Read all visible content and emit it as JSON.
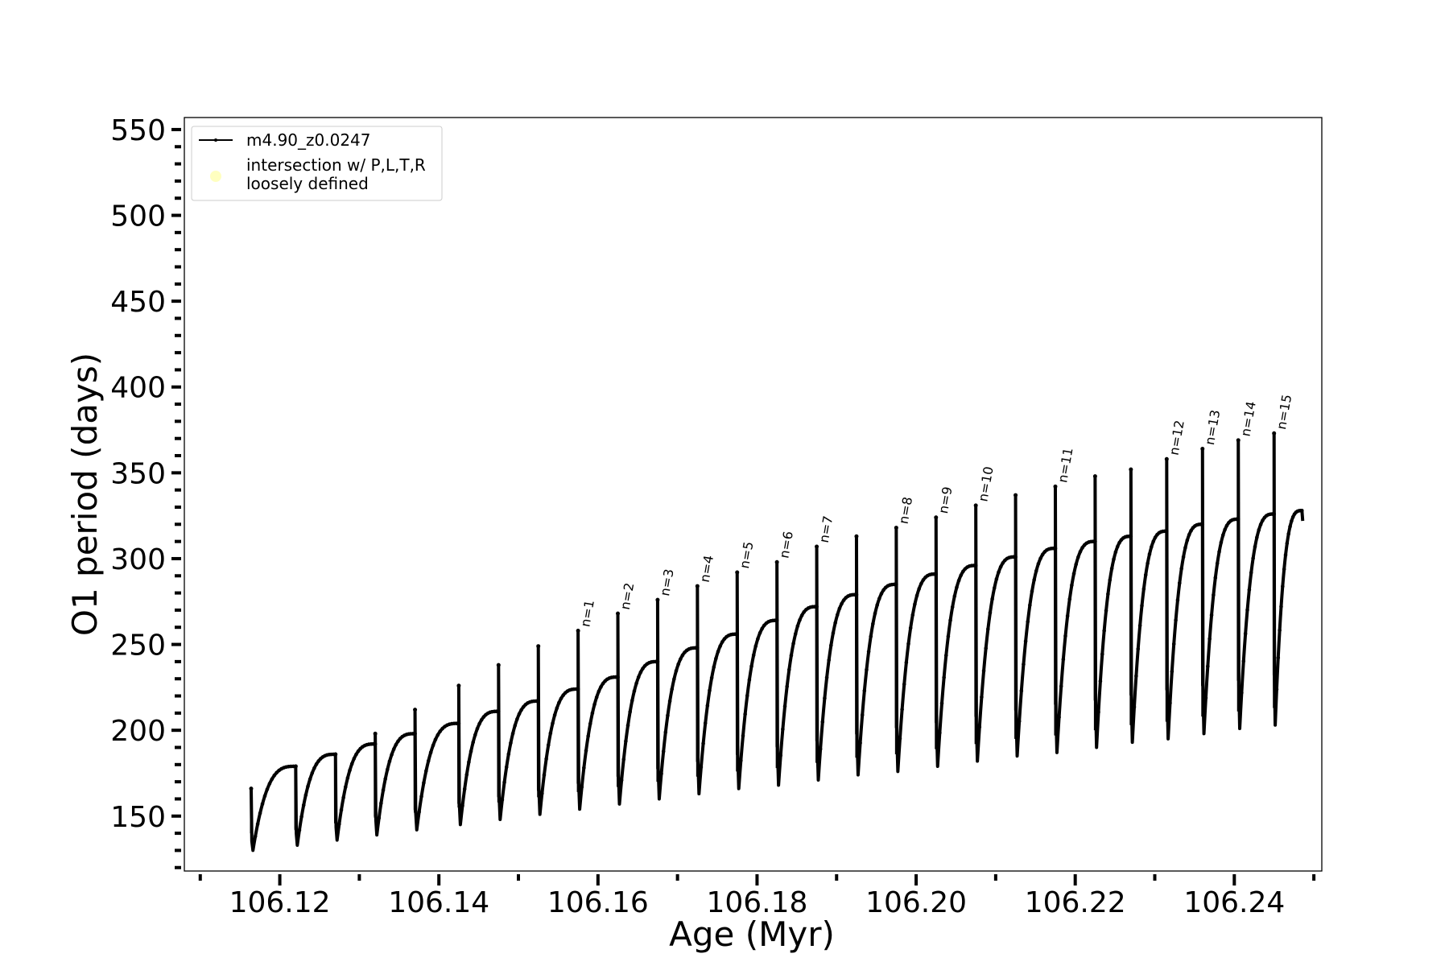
{
  "chart_data": {
    "type": "line",
    "title": "",
    "xlabel": "Age (Myr)",
    "ylabel": "O1 period (days)",
    "xlim": [
      106.108,
      106.251
    ],
    "ylim": [
      118,
      557
    ],
    "xticks": [
      "106.12",
      "106.14",
      "106.16",
      "106.18",
      "106.20",
      "106.22",
      "106.24"
    ],
    "yticks": [
      "150",
      "200",
      "250",
      "300",
      "350",
      "400",
      "450",
      "500",
      "550"
    ],
    "grid": false,
    "legend_position": "top-left",
    "series": [
      {
        "name": "m4.90_z0.0247",
        "color": "#000000",
        "cycles": [
          {
            "x_start": 106.1164,
            "x_end": 106.122,
            "trough": 130,
            "end": 179,
            "spike": 166
          },
          {
            "x_start": 106.122,
            "x_end": 106.127,
            "trough": 133,
            "end": 186,
            "spike": 179
          },
          {
            "x_start": 106.127,
            "x_end": 106.132,
            "trough": 136,
            "end": 192,
            "spike": 186
          },
          {
            "x_start": 106.132,
            "x_end": 106.137,
            "trough": 139,
            "end": 198,
            "spike": 198
          },
          {
            "x_start": 106.137,
            "x_end": 106.1425,
            "trough": 142,
            "end": 204,
            "spike": 212
          },
          {
            "x_start": 106.1425,
            "x_end": 106.1475,
            "trough": 145,
            "end": 211,
            "spike": 226
          },
          {
            "x_start": 106.1475,
            "x_end": 106.1525,
            "trough": 148,
            "end": 217,
            "spike": 238
          },
          {
            "x_start": 106.1525,
            "x_end": 106.1575,
            "trough": 151,
            "end": 224,
            "spike": 249
          },
          {
            "x_start": 106.1575,
            "x_end": 106.1625,
            "trough": 154,
            "end": 231,
            "spike": 258
          },
          {
            "x_start": 106.1625,
            "x_end": 106.1675,
            "trough": 157,
            "end": 240,
            "spike": 268
          },
          {
            "x_start": 106.1675,
            "x_end": 106.1725,
            "trough": 160,
            "end": 248,
            "spike": 276
          },
          {
            "x_start": 106.1725,
            "x_end": 106.1775,
            "trough": 163,
            "end": 256,
            "spike": 284
          },
          {
            "x_start": 106.1775,
            "x_end": 106.1825,
            "trough": 166,
            "end": 264,
            "spike": 292
          },
          {
            "x_start": 106.1825,
            "x_end": 106.1875,
            "trough": 168,
            "end": 272,
            "spike": 298
          },
          {
            "x_start": 106.1875,
            "x_end": 106.1925,
            "trough": 171,
            "end": 279,
            "spike": 307
          },
          {
            "x_start": 106.1925,
            "x_end": 106.1975,
            "trough": 174,
            "end": 285,
            "spike": 313
          },
          {
            "x_start": 106.1975,
            "x_end": 106.2025,
            "trough": 176,
            "end": 291,
            "spike": 318
          },
          {
            "x_start": 106.2025,
            "x_end": 106.2075,
            "trough": 179,
            "end": 296,
            "spike": 324
          },
          {
            "x_start": 106.2075,
            "x_end": 106.2125,
            "trough": 182,
            "end": 301,
            "spike": 331
          },
          {
            "x_start": 106.2125,
            "x_end": 106.2175,
            "trough": 185,
            "end": 306,
            "spike": 337
          },
          {
            "x_start": 106.2175,
            "x_end": 106.2225,
            "trough": 187,
            "end": 310,
            "spike": 342
          },
          {
            "x_start": 106.2225,
            "x_end": 106.227,
            "trough": 190,
            "end": 313,
            "spike": 348
          },
          {
            "x_start": 106.227,
            "x_end": 106.2315,
            "trough": 193,
            "end": 316,
            "spike": 352
          },
          {
            "x_start": 106.2315,
            "x_end": 106.236,
            "trough": 195,
            "end": 320,
            "spike": 358
          },
          {
            "x_start": 106.236,
            "x_end": 106.2405,
            "trough": 198,
            "end": 323,
            "spike": 364
          },
          {
            "x_start": 106.2405,
            "x_end": 106.245,
            "trough": 201,
            "end": 326,
            "spike": 369
          },
          {
            "x_start": 106.245,
            "x_end": 106.2485,
            "trough": 203,
            "end": 328,
            "spike": 373
          }
        ],
        "final_point": {
          "x": 106.2486,
          "y": 322
        }
      },
      {
        "name": "intersection w/ P,L,T,R\nloosely defined",
        "color": "#ffffc0",
        "points": []
      }
    ],
    "annotations": [
      {
        "text": "n=1",
        "x": 106.1575,
        "y": 258
      },
      {
        "text": "n=2",
        "x": 106.1625,
        "y": 268
      },
      {
        "text": "n=3",
        "x": 106.1675,
        "y": 276
      },
      {
        "text": "n=4",
        "x": 106.1725,
        "y": 284
      },
      {
        "text": "n=5",
        "x": 106.1775,
        "y": 292
      },
      {
        "text": "n=6",
        "x": 106.1825,
        "y": 298
      },
      {
        "text": "n=7",
        "x": 106.1875,
        "y": 307
      },
      {
        "text": "n=8",
        "x": 106.1975,
        "y": 318
      },
      {
        "text": "n=9",
        "x": 106.2025,
        "y": 324
      },
      {
        "text": "n=10",
        "x": 106.2075,
        "y": 331
      },
      {
        "text": "n=11",
        "x": 106.2175,
        "y": 342
      },
      {
        "text": "n=12",
        "x": 106.2315,
        "y": 358
      },
      {
        "text": "n=13",
        "x": 106.236,
        "y": 364
      },
      {
        "text": "n=14",
        "x": 106.2405,
        "y": 369
      },
      {
        "text": "n=15",
        "x": 106.245,
        "y": 373
      }
    ]
  }
}
